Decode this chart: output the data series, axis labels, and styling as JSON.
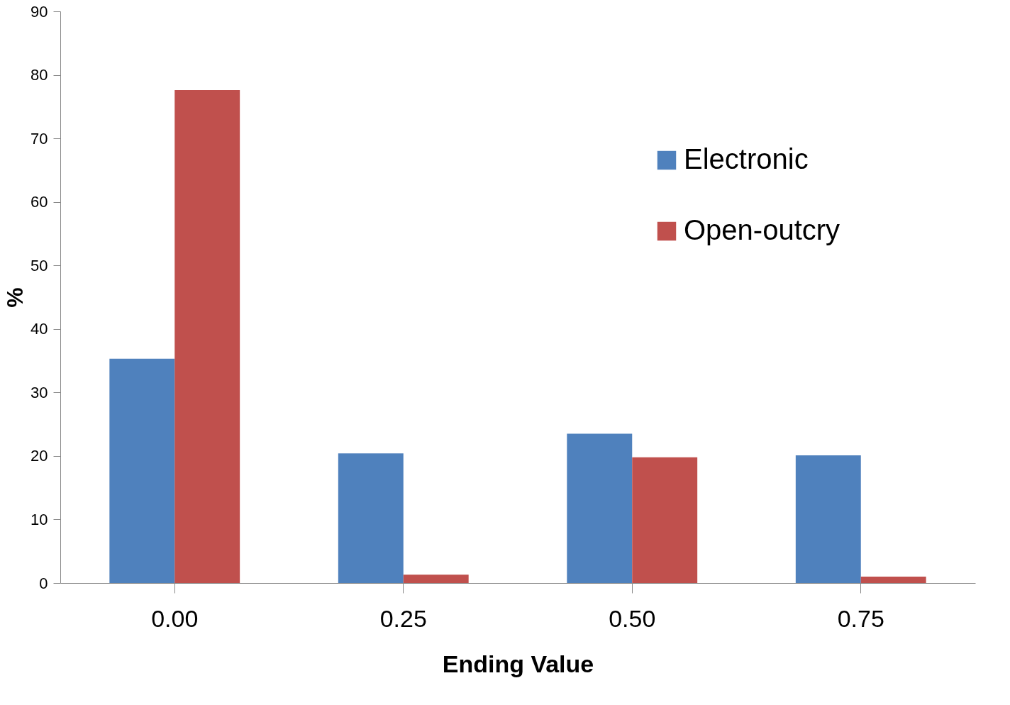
{
  "chart_data": {
    "type": "bar",
    "xlabel": "Ending Value",
    "ylabel": "%",
    "categories": [
      "0.00",
      "0.25",
      "0.50",
      "0.75"
    ],
    "series": [
      {
        "name": "Electronic",
        "color": "#4f81bd",
        "values": [
          35.3,
          20.4,
          23.5,
          20.1
        ]
      },
      {
        "name": "Open-outcry",
        "color": "#c0504d",
        "values": [
          77.6,
          1.3,
          19.8,
          1.0
        ]
      }
    ],
    "ylim": [
      0,
      90
    ],
    "yticks": [
      0,
      10,
      20,
      30,
      40,
      50,
      60,
      70,
      80,
      90
    ],
    "grid": false,
    "legend": "top right"
  }
}
